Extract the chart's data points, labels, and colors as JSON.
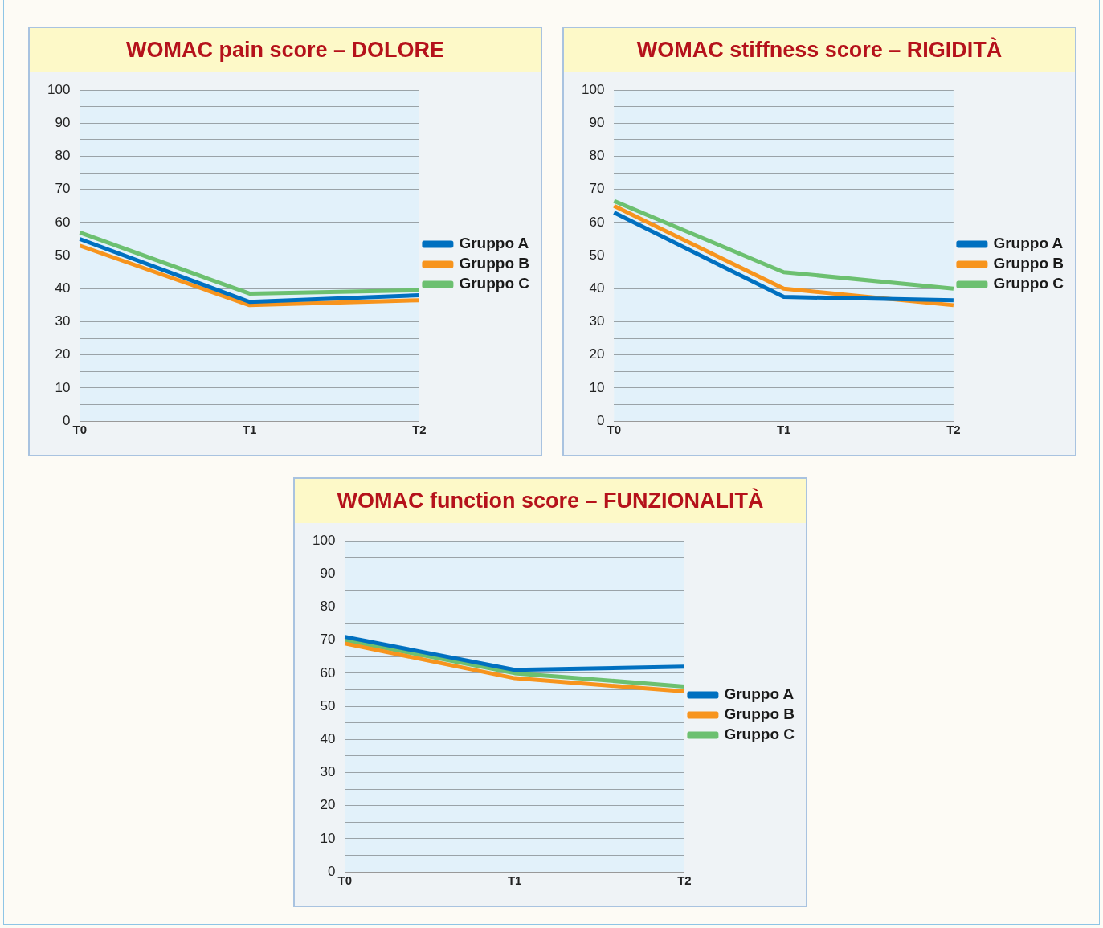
{
  "chart_data": [
    {
      "type": "line",
      "title": "WOMAC pain score – DOLORE",
      "categories": [
        "T0",
        "T1",
        "T2"
      ],
      "series": [
        {
          "name": "Gruppo A",
          "color": "#0070c0",
          "values": [
            55,
            36,
            38
          ]
        },
        {
          "name": "Gruppo B",
          "color": "#f7941d",
          "values": [
            53,
            35,
            36.5
          ]
        },
        {
          "name": "Gruppo C",
          "color": "#6cc070",
          "values": [
            57,
            38.5,
            39.5
          ]
        }
      ],
      "ylim": [
        0,
        100
      ],
      "yticks": [
        0,
        {
          "value": 5,
          "label": null
        },
        10,
        {
          "value": 15,
          "label": null
        },
        20,
        {
          "value": 25,
          "label": null
        },
        30,
        {
          "value": 35,
          "label": null
        },
        40,
        {
          "value": 45,
          "label": null
        },
        50,
        {
          "value": 55,
          "label": null
        },
        60,
        {
          "value": 65,
          "label": null
        },
        70,
        {
          "value": 75,
          "label": null
        },
        80,
        {
          "value": 85,
          "label": null
        },
        90,
        {
          "value": 95,
          "label": null
        },
        100
      ],
      "grid": "y",
      "legend": "right",
      "marker": "none",
      "line_style": "solid"
    },
    {
      "type": "line",
      "title": "WOMAC stiffness score – RIGIDITÀ",
      "categories": [
        "T0",
        "T1",
        "T2"
      ],
      "series": [
        {
          "name": "Gruppo A",
          "color": "#0070c0",
          "values": [
            63,
            37.5,
            36.5
          ]
        },
        {
          "name": "Gruppo B",
          "color": "#f7941d",
          "values": [
            65,
            40,
            35
          ]
        },
        {
          "name": "Gruppo C",
          "color": "#6cc070",
          "values": [
            66.5,
            45,
            40
          ]
        }
      ],
      "ylim": [
        0,
        100
      ],
      "yticks": [
        0,
        {
          "value": 5,
          "label": null
        },
        10,
        {
          "value": 15,
          "label": null
        },
        20,
        {
          "value": 25,
          "label": null
        },
        30,
        {
          "value": 35,
          "label": null
        },
        40,
        {
          "value": 45,
          "label": null
        },
        50,
        {
          "value": 55,
          "label": null
        },
        60,
        {
          "value": 65,
          "label": null
        },
        70,
        {
          "value": 75,
          "label": null
        },
        80,
        {
          "value": 85,
          "label": null
        },
        90,
        {
          "value": 95,
          "label": null
        },
        100
      ],
      "grid": "y",
      "legend": "right",
      "marker": "none",
      "line_style": "solid"
    },
    {
      "type": "line",
      "title": "WOMAC function score – FUNZIONALITÀ",
      "categories": [
        "T0",
        "T1",
        "T2"
      ],
      "series": [
        {
          "name": "Gruppo A",
          "color": "#0070c0",
          "values": [
            71,
            61,
            62
          ]
        },
        {
          "name": "Gruppo B",
          "color": "#f7941d",
          "values": [
            69,
            58.5,
            54.5
          ]
        },
        {
          "name": "Gruppo C",
          "color": "#6cc070",
          "values": [
            70,
            60,
            56
          ]
        }
      ],
      "ylim": [
        0,
        100
      ],
      "yticks": [
        0,
        {
          "value": 5,
          "label": null
        },
        10,
        {
          "value": 15,
          "label": null
        },
        20,
        {
          "value": 25,
          "label": null
        },
        30,
        {
          "value": 35,
          "label": null
        },
        40,
        {
          "value": 45,
          "label": null
        },
        50,
        {
          "value": 55,
          "label": null
        },
        60,
        {
          "value": 65,
          "label": null
        },
        70,
        {
          "value": 75,
          "label": null
        },
        80,
        {
          "value": 85,
          "label": null
        },
        90,
        {
          "value": 95,
          "label": null
        },
        100
      ],
      "grid": "y",
      "legend": "right",
      "marker": "none",
      "line_style": "solid"
    }
  ]
}
